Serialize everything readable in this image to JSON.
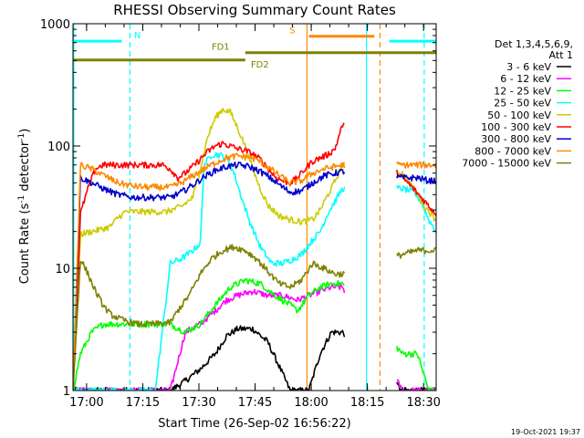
{
  "chart_data": {
    "type": "line",
    "title": "RHESSI Observing Summary Count Rates",
    "xlabel": "Start Time (26-Sep-02 16:56:22)",
    "ylabel_main": "Count Rate (s",
    "ylabel_sup1": "-1",
    "ylabel_mid": " detector",
    "ylabel_sup2": "-1",
    "ylabel_end": ")",
    "y_scale": "log",
    "ylim": [
      1,
      1000
    ],
    "xlim_minutes": [
      0,
      97
    ],
    "x_ticks": [
      {
        "t": 3.63,
        "label": "17:00"
      },
      {
        "t": 18.63,
        "label": "17:15"
      },
      {
        "t": 33.63,
        "label": "17:30"
      },
      {
        "t": 48.63,
        "label": "17:45"
      },
      {
        "t": 63.63,
        "label": "18:00"
      },
      {
        "t": 78.63,
        "label": "18:15"
      },
      {
        "t": 93.63,
        "label": "18:30"
      }
    ],
    "y_ticks": [
      {
        "v": 1,
        "label": "1"
      },
      {
        "v": 10,
        "label": "10"
      },
      {
        "v": 100,
        "label": "100"
      },
      {
        "v": 1000,
        "label": "1000"
      }
    ],
    "legend": {
      "header": [
        "Det 1,3,4,5,6,9,",
        "Att 1"
      ],
      "placement": "right"
    },
    "data_gaps_minutes": [
      [
        72.5,
        86.5
      ]
    ],
    "series": [
      {
        "name": "3 - 6 keV",
        "color": "#000000",
        "points": [
          [
            0,
            1
          ],
          [
            26,
            1
          ],
          [
            30,
            1.2
          ],
          [
            34,
            1.5
          ],
          [
            38,
            2
          ],
          [
            41,
            2.8
          ],
          [
            44,
            3.2
          ],
          [
            48,
            3.2
          ],
          [
            52,
            2.5
          ],
          [
            55,
            1.6
          ],
          [
            58,
            1
          ],
          [
            63,
            1
          ],
          [
            66,
            2
          ],
          [
            69,
            3
          ],
          [
            72,
            3
          ],
          [
            88,
            1
          ],
          [
            97,
            1
          ]
        ]
      },
      {
        "name": "6 - 12 keV",
        "color": "#ff00ff",
        "points": [
          [
            0,
            1
          ],
          [
            26,
            1
          ],
          [
            30,
            3
          ],
          [
            34,
            3.5
          ],
          [
            38,
            4.5
          ],
          [
            41,
            5.5
          ],
          [
            44,
            6
          ],
          [
            48,
            6.5
          ],
          [
            52,
            6
          ],
          [
            56,
            6
          ],
          [
            60,
            5.5
          ],
          [
            63,
            6
          ],
          [
            66,
            6.5
          ],
          [
            69,
            7
          ],
          [
            72,
            7
          ],
          [
            88,
            1
          ],
          [
            97,
            1
          ]
        ]
      },
      {
        "name": "12 - 25 keV",
        "color": "#00ff00",
        "points": [
          [
            0,
            1
          ],
          [
            2,
            2
          ],
          [
            5,
            3
          ],
          [
            8,
            3.5
          ],
          [
            15,
            3.5
          ],
          [
            22,
            3.5
          ],
          [
            26,
            3.5
          ],
          [
            30,
            3
          ],
          [
            34,
            3.5
          ],
          [
            38,
            5
          ],
          [
            42,
            7
          ],
          [
            46,
            8
          ],
          [
            50,
            7.5
          ],
          [
            54,
            6
          ],
          [
            58,
            5
          ],
          [
            60,
            4.5
          ],
          [
            63,
            6
          ],
          [
            66,
            7
          ],
          [
            69,
            7.5
          ],
          [
            72,
            7.5
          ],
          [
            88,
            2
          ],
          [
            92,
            2
          ],
          [
            95,
            1
          ],
          [
            97,
            1
          ]
        ]
      },
      {
        "name": "25 - 50 keV",
        "color": "#00ffff",
        "points": [
          [
            0,
            1
          ],
          [
            22,
            1
          ],
          [
            26,
            11
          ],
          [
            29,
            12
          ],
          [
            32,
            14
          ],
          [
            34,
            16
          ],
          [
            35,
            70
          ],
          [
            37,
            85
          ],
          [
            39,
            85
          ],
          [
            41,
            80
          ],
          [
            43,
            60
          ],
          [
            45,
            38
          ],
          [
            47,
            25
          ],
          [
            50,
            15
          ],
          [
            53,
            11
          ],
          [
            56,
            11
          ],
          [
            59,
            12
          ],
          [
            61,
            13
          ],
          [
            64,
            17
          ],
          [
            66,
            20
          ],
          [
            68,
            28
          ],
          [
            72,
            45
          ],
          [
            88,
            45
          ],
          [
            91,
            42
          ],
          [
            93,
            35
          ],
          [
            95,
            25
          ],
          [
            97,
            20
          ]
        ]
      },
      {
        "name": "50 - 100 keV",
        "color": "#cccc00",
        "points": [
          [
            0,
            1
          ],
          [
            2,
            19
          ],
          [
            5,
            20
          ],
          [
            8,
            21
          ],
          [
            10,
            22
          ],
          [
            12,
            26
          ],
          [
            14,
            29
          ],
          [
            18,
            29
          ],
          [
            22,
            29
          ],
          [
            25,
            29
          ],
          [
            29,
            32
          ],
          [
            32,
            38
          ],
          [
            34,
            65
          ],
          [
            36,
            120
          ],
          [
            38,
            170
          ],
          [
            40,
            200
          ],
          [
            42,
            190
          ],
          [
            44,
            140
          ],
          [
            46,
            100
          ],
          [
            48,
            65
          ],
          [
            50,
            45
          ],
          [
            52,
            33
          ],
          [
            55,
            27
          ],
          [
            58,
            25
          ],
          [
            61,
            24
          ],
          [
            64,
            25
          ],
          [
            66,
            30
          ],
          [
            69,
            45
          ],
          [
            72,
            70
          ],
          [
            88,
            60
          ],
          [
            91,
            45
          ],
          [
            94,
            32
          ],
          [
            97,
            25
          ]
        ]
      },
      {
        "name": "100 - 300 keV",
        "color": "#ff0000",
        "points": [
          [
            0,
            1
          ],
          [
            2,
            28
          ],
          [
            4,
            45
          ],
          [
            6,
            65
          ],
          [
            8,
            70
          ],
          [
            15,
            70
          ],
          [
            22,
            70
          ],
          [
            24,
            70
          ],
          [
            26,
            65
          ],
          [
            28,
            55
          ],
          [
            30,
            60
          ],
          [
            32,
            68
          ],
          [
            34,
            78
          ],
          [
            36,
            90
          ],
          [
            38,
            100
          ],
          [
            40,
            105
          ],
          [
            42,
            100
          ],
          [
            44,
            95
          ],
          [
            46,
            92
          ],
          [
            48,
            86
          ],
          [
            50,
            78
          ],
          [
            52,
            66
          ],
          [
            54,
            56
          ],
          [
            56,
            52
          ],
          [
            58,
            50
          ],
          [
            60,
            55
          ],
          [
            62,
            65
          ],
          [
            64,
            75
          ],
          [
            66,
            80
          ],
          [
            68,
            85
          ],
          [
            70,
            95
          ],
          [
            72,
            150
          ],
          [
            88,
            55
          ],
          [
            90,
            48
          ],
          [
            93,
            38
          ],
          [
            96,
            30
          ],
          [
            97,
            28
          ]
        ]
      },
      {
        "name": "300 - 800 keV",
        "color": "#0000cc",
        "points": [
          [
            0,
            1
          ],
          [
            2,
            55
          ],
          [
            5,
            50
          ],
          [
            8,
            45
          ],
          [
            12,
            40
          ],
          [
            16,
            38
          ],
          [
            20,
            38
          ],
          [
            24,
            38
          ],
          [
            26,
            38
          ],
          [
            29,
            42
          ],
          [
            32,
            48
          ],
          [
            35,
            56
          ],
          [
            38,
            63
          ],
          [
            41,
            68
          ],
          [
            44,
            70
          ],
          [
            47,
            68
          ],
          [
            50,
            62
          ],
          [
            53,
            54
          ],
          [
            56,
            46
          ],
          [
            58,
            42
          ],
          [
            61,
            43
          ],
          [
            64,
            50
          ],
          [
            67,
            57
          ],
          [
            70,
            60
          ],
          [
            72,
            62
          ],
          [
            88,
            55
          ],
          [
            92,
            55
          ],
          [
            95,
            52
          ],
          [
            97,
            52
          ]
        ]
      },
      {
        "name": "800 - 7000 keV",
        "color": "#ff8800",
        "points": [
          [
            0,
            1
          ],
          [
            2,
            70
          ],
          [
            5,
            65
          ],
          [
            8,
            58
          ],
          [
            12,
            50
          ],
          [
            16,
            47
          ],
          [
            20,
            46
          ],
          [
            24,
            46
          ],
          [
            26,
            46
          ],
          [
            29,
            50
          ],
          [
            32,
            57
          ],
          [
            35,
            65
          ],
          [
            38,
            73
          ],
          [
            41,
            80
          ],
          [
            44,
            83
          ],
          [
            47,
            81
          ],
          [
            50,
            75
          ],
          [
            53,
            64
          ],
          [
            56,
            55
          ],
          [
            58,
            50
          ],
          [
            61,
            52
          ],
          [
            64,
            60
          ],
          [
            67,
            65
          ],
          [
            70,
            68
          ],
          [
            72,
            70
          ],
          [
            88,
            70
          ],
          [
            92,
            70
          ],
          [
            95,
            70
          ],
          [
            97,
            70
          ]
        ]
      },
      {
        "name": "7000 - 15000 keV",
        "color": "#808000",
        "points": [
          [
            0,
            1
          ],
          [
            2,
            12
          ],
          [
            4,
            9
          ],
          [
            6,
            6.5
          ],
          [
            8,
            5
          ],
          [
            10,
            4.2
          ],
          [
            13,
            3.8
          ],
          [
            17,
            3.5
          ],
          [
            22,
            3.5
          ],
          [
            26,
            3.6
          ],
          [
            28,
            4.5
          ],
          [
            31,
            6
          ],
          [
            34,
            9
          ],
          [
            37,
            12
          ],
          [
            40,
            14
          ],
          [
            43,
            15
          ],
          [
            46,
            14
          ],
          [
            49,
            12
          ],
          [
            52,
            9.5
          ],
          [
            55,
            7.5
          ],
          [
            58,
            7
          ],
          [
            61,
            8
          ],
          [
            64,
            11
          ],
          [
            67,
            10
          ],
          [
            70,
            9
          ],
          [
            72,
            9
          ],
          [
            88,
            13
          ],
          [
            92,
            14
          ],
          [
            95,
            14
          ],
          [
            97,
            14
          ]
        ]
      }
    ],
    "annotations": [
      {
        "label": "N",
        "color": "#00ffff",
        "y": 720,
        "segments": [
          [
            0,
            13
          ],
          [
            84.5,
            97
          ]
        ],
        "label_t": 16.3
      },
      {
        "label": "S",
        "color": "#ff8800",
        "y": 790,
        "segments": [
          [
            63,
            80.5
          ]
        ],
        "label_t": 57.8
      },
      {
        "label": "FD1",
        "color": "#808000",
        "y": 580,
        "segments": [
          [
            46,
            97
          ]
        ],
        "label_t": 37
      },
      {
        "label": "FD2",
        "color": "#808000",
        "y": 505,
        "segments": [
          [
            0,
            46
          ]
        ],
        "label_t": 47.5
      }
    ],
    "vertical_lines": [
      {
        "t": 0.2,
        "color": "#00ffff",
        "style": "solid"
      },
      {
        "t": 15.2,
        "color": "#00ffff",
        "style": "dashed"
      },
      {
        "t": 62.5,
        "color": "#ff8800",
        "style": "solid"
      },
      {
        "t": 78.4,
        "color": "#00ffff",
        "style": "solid"
      },
      {
        "t": 82.0,
        "color": "#ff8800",
        "style": "dashed"
      },
      {
        "t": 93.8,
        "color": "#00ffff",
        "style": "dashed"
      }
    ]
  },
  "footer": {
    "timestamp": "19-Oct-2021 19:37"
  }
}
